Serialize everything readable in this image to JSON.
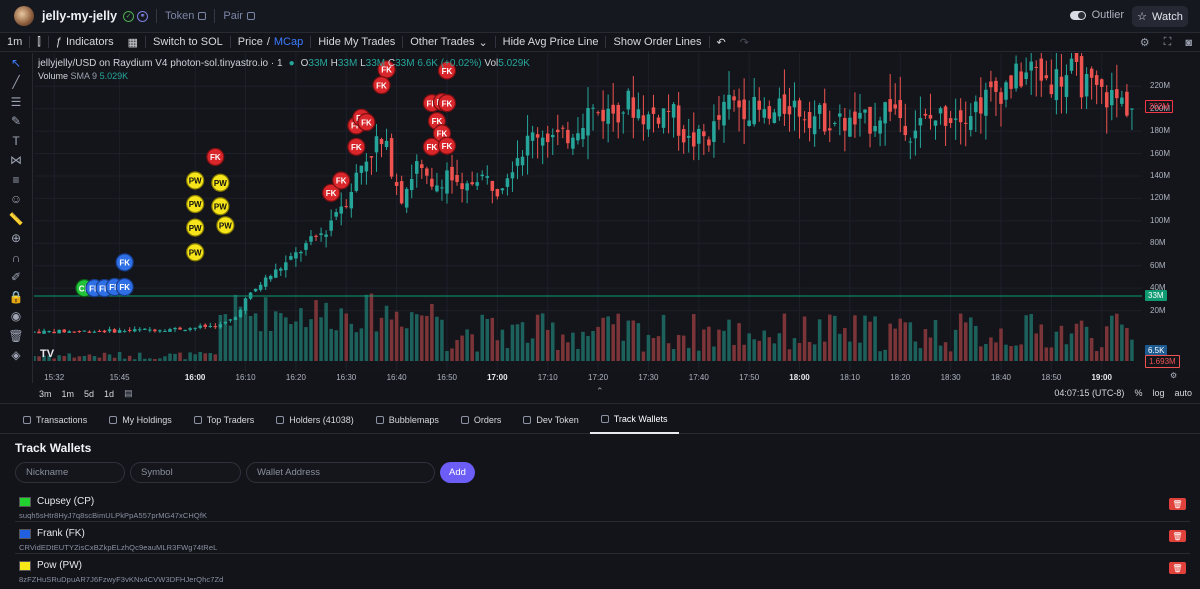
{
  "header": {
    "pair_name": "jelly-my-jelly",
    "token_link": "Token",
    "pair_link": "Pair",
    "outlier_label": "Outlier",
    "watch_label": "Watch"
  },
  "toolbar": {
    "interval": "1m",
    "indicators": "Indicators",
    "switch_to_sol": "Switch to SOL",
    "price": "Price",
    "mcap": "MCap",
    "hide_my_trades": "Hide My Trades",
    "other_trades": "Other Trades",
    "hide_avg_price_line": "Hide Avg Price Line",
    "show_order_lines": "Show Order Lines"
  },
  "legend": {
    "symbol": "jellyjelly/USD on Raydium V4 photon-sol.tinyastro.io · 1",
    "o_label": "O",
    "o_value": "33M",
    "h_label": "H",
    "h_value": "33M",
    "l_label": "L",
    "l_value": "33M",
    "c_label": "C",
    "c_value": "33M",
    "change": "6.6K (+0.02%)",
    "vol_label": "Vol",
    "vol_value": "5.029K",
    "volume_label": "Volume",
    "sma_label": "SMA 9",
    "sma_value": "5.029K"
  },
  "y_axis": {
    "labels": [
      "220M",
      "200M",
      "180M",
      "160M",
      "140M",
      "120M",
      "100M",
      "80M",
      "60M",
      "40M",
      "20M"
    ],
    "price_tag": "202M",
    "current_tag": "33M",
    "vol_tag": "6.5K",
    "vol_tag2": "1.693M",
    "price_color": "#f23645",
    "current_color": "#0e9b72"
  },
  "x_axis": {
    "labels": [
      "15:32",
      "15:45",
      "16:00",
      "16:10",
      "16:20",
      "16:30",
      "16:40",
      "16:50",
      "17:00",
      "17:10",
      "17:20",
      "17:30",
      "17:40",
      "17:50",
      "18:00",
      "18:10",
      "18:20",
      "18:30",
      "18:40",
      "18:50",
      "19:00"
    ],
    "bold": [
      "16:00",
      "17:00",
      "18:00",
      "19:00"
    ]
  },
  "range_bar": {
    "ranges": [
      "3m",
      "1m",
      "5d",
      "1d"
    ],
    "time": "04:07:15 (UTC-8)",
    "percent": "%",
    "log": "log",
    "auto": "auto"
  },
  "tabs": [
    {
      "label": "Transactions"
    },
    {
      "label": "My Holdings"
    },
    {
      "label": "Top Traders"
    },
    {
      "label": "Holders (41038)"
    },
    {
      "label": "Bubblemaps"
    },
    {
      "label": "Orders"
    },
    {
      "label": "Dev Token"
    },
    {
      "label": "Track Wallets"
    }
  ],
  "track_wallets": {
    "title": "Track Wallets",
    "nickname_placeholder": "Nickname",
    "symbol_placeholder": "Symbol",
    "address_placeholder": "Wallet Address",
    "add_label": "Add",
    "wallets": [
      {
        "name": "Cupsey (CP)",
        "address": "suqh5sHtr8HyJ7q8scBimULPkPpA557prMG47xCHQfK",
        "color": "#22d12f"
      },
      {
        "name": "Frank (FK)",
        "address": "CRVidEDtEUTYZisCxBZkpELzhQc9eauMLR3FWg74tReL",
        "color": "#1f5fe0"
      },
      {
        "name": "Pow (PW)",
        "address": "8zFZHuSRuDpuAR7J6FzwyF3vKNx4CVW3DFHJerQhc7Zd",
        "color": "#f7e81a"
      }
    ]
  },
  "chart_data": {
    "type": "candlestick",
    "title": "jellyjelly/USD on Raydium V4 photon-sol.tinyastro.io · 1",
    "ylabel": "",
    "ylim": [
      0,
      230
    ],
    "yunit": "M",
    "x_range": [
      "15:28",
      "19:08"
    ],
    "x_step_minutes": 1,
    "anchors": [
      [
        "15:28",
        1
      ],
      [
        "15:45",
        2
      ],
      [
        "15:58",
        4
      ],
      [
        "16:05",
        7
      ],
      [
        "16:08",
        14
      ],
      [
        "16:10",
        30
      ],
      [
        "16:14",
        48
      ],
      [
        "16:18",
        62
      ],
      [
        "16:22",
        78
      ],
      [
        "16:26",
        92
      ],
      [
        "16:28",
        110
      ],
      [
        "16:30",
        120
      ],
      [
        "16:33",
        150
      ],
      [
        "16:36",
        170
      ],
      [
        "16:38",
        162
      ],
      [
        "16:41",
        122
      ],
      [
        "16:44",
        150
      ],
      [
        "16:47",
        126
      ],
      [
        "16:50",
        145
      ],
      [
        "16:53",
        122
      ],
      [
        "16:56",
        142
      ],
      [
        "17:00",
        130
      ],
      [
        "17:04",
        160
      ],
      [
        "17:08",
        180
      ],
      [
        "17:13",
        172
      ],
      [
        "17:18",
        198
      ],
      [
        "17:22",
        196
      ],
      [
        "17:26",
        205
      ],
      [
        "17:30",
        192
      ],
      [
        "17:34",
        200
      ],
      [
        "17:38",
        170
      ],
      [
        "17:42",
        175
      ],
      [
        "17:46",
        205
      ],
      [
        "17:50",
        202
      ],
      [
        "17:54",
        190
      ],
      [
        "17:58",
        205
      ],
      [
        "18:02",
        195
      ],
      [
        "18:06",
        190
      ],
      [
        "18:10",
        186
      ],
      [
        "18:14",
        188
      ],
      [
        "18:18",
        205
      ],
      [
        "18:22",
        182
      ],
      [
        "18:26",
        190
      ],
      [
        "18:30",
        196
      ],
      [
        "18:34",
        200
      ],
      [
        "18:38",
        212
      ],
      [
        "18:42",
        224
      ],
      [
        "18:46",
        234
      ],
      [
        "18:50",
        226
      ],
      [
        "18:54",
        232
      ],
      [
        "18:58",
        216
      ],
      [
        "19:02",
        210
      ],
      [
        "19:04",
        206
      ],
      [
        "19:06",
        202
      ]
    ],
    "volume_unit": "K",
    "volume_ylim": [
      0,
      90
    ],
    "markers": [
      {
        "label": "FK",
        "wallet": "Frank",
        "t": "16:04",
        "price": 157
      },
      {
        "label": "PW",
        "wallet": "Pow",
        "t": "16:00",
        "price": 136
      },
      {
        "label": "PW",
        "wallet": "Pow",
        "t": "16:05",
        "price": 134
      },
      {
        "label": "PW",
        "wallet": "Pow",
        "t": "16:00",
        "price": 115
      },
      {
        "label": "PW",
        "wallet": "Pow",
        "t": "16:05",
        "price": 113
      },
      {
        "label": "PW",
        "wallet": "Pow",
        "t": "16:00",
        "price": 94
      },
      {
        "label": "PW",
        "wallet": "Pow",
        "t": "16:06",
        "price": 96
      },
      {
        "label": "PW",
        "wallet": "Pow",
        "t": "16:00",
        "price": 72
      },
      {
        "label": "FK",
        "wallet": "Frank",
        "t": "15:46",
        "price": 63
      },
      {
        "label": "CP",
        "wallet": "Cupsey",
        "t": "15:38",
        "price": 40
      },
      {
        "label": "FK",
        "wallet": "Frank",
        "t": "15:40",
        "price": 40
      },
      {
        "label": "FK",
        "wallet": "Frank",
        "t": "15:42",
        "price": 40
      },
      {
        "label": "FK",
        "wallet": "Frank",
        "t": "15:44",
        "price": 41
      },
      {
        "label": "FK",
        "wallet": "Frank",
        "t": "15:46",
        "price": 41
      },
      {
        "label": "FK",
        "wallet": "Frank",
        "t": "16:27",
        "price": 125
      },
      {
        "label": "FK",
        "wallet": "Frank",
        "t": "16:29",
        "price": 136
      },
      {
        "label": "FK",
        "wallet": "Frank",
        "t": "16:32",
        "price": 185
      },
      {
        "label": "FK",
        "wallet": "Frank",
        "t": "16:33",
        "price": 192
      },
      {
        "label": "FK",
        "wallet": "Frank",
        "t": "16:34",
        "price": 188
      },
      {
        "label": "FK",
        "wallet": "Frank",
        "t": "16:32",
        "price": 166
      },
      {
        "label": "FK",
        "wallet": "Frank",
        "t": "16:38",
        "price": 235
      },
      {
        "label": "FK",
        "wallet": "Frank",
        "t": "16:37",
        "price": 221
      },
      {
        "label": "FK",
        "wallet": "Frank",
        "t": "16:47",
        "price": 166
      },
      {
        "label": "FK",
        "wallet": "Frank",
        "t": "16:48",
        "price": 189
      },
      {
        "label": "FK",
        "wallet": "Frank",
        "t": "16:49",
        "price": 178
      },
      {
        "label": "FK",
        "wallet": "Frank",
        "t": "16:50",
        "price": 167
      },
      {
        "label": "FK",
        "wallet": "Frank",
        "t": "16:47",
        "price": 205
      },
      {
        "label": "FK",
        "wallet": "Frank",
        "t": "16:49",
        "price": 206
      },
      {
        "label": "FK",
        "wallet": "Frank",
        "t": "16:50",
        "price": 205
      },
      {
        "label": "FK",
        "wallet": "Frank",
        "t": "16:50",
        "price": 234
      }
    ]
  }
}
